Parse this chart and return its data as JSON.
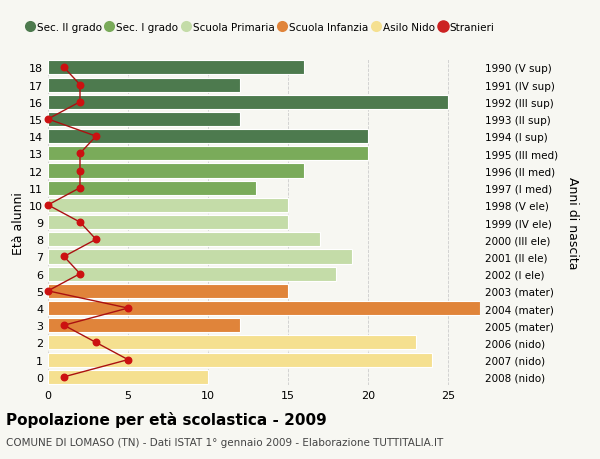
{
  "ages": [
    18,
    17,
    16,
    15,
    14,
    13,
    12,
    11,
    10,
    9,
    8,
    7,
    6,
    5,
    4,
    3,
    2,
    1,
    0
  ],
  "right_labels": [
    "1990 (V sup)",
    "1991 (IV sup)",
    "1992 (III sup)",
    "1993 (II sup)",
    "1994 (I sup)",
    "1995 (III med)",
    "1996 (II med)",
    "1997 (I med)",
    "1998 (V ele)",
    "1999 (IV ele)",
    "2000 (III ele)",
    "2001 (II ele)",
    "2002 (I ele)",
    "2003 (mater)",
    "2004 (mater)",
    "2005 (mater)",
    "2006 (nido)",
    "2007 (nido)",
    "2008 (nido)"
  ],
  "bar_values": [
    16,
    12,
    25,
    12,
    20,
    20,
    16,
    13,
    15,
    15,
    17,
    19,
    18,
    15,
    27,
    12,
    23,
    24,
    10
  ],
  "bar_colors": [
    "#4d7a4e",
    "#4d7a4e",
    "#4d7a4e",
    "#4d7a4e",
    "#4d7a4e",
    "#7aab5a",
    "#7aab5a",
    "#7aab5a",
    "#c4dca8",
    "#c4dca8",
    "#c4dca8",
    "#c4dca8",
    "#c4dca8",
    "#e0843a",
    "#e0843a",
    "#e0843a",
    "#f5e090",
    "#f5e090",
    "#f5e090"
  ],
  "stranieri_values": [
    1,
    2,
    2,
    0,
    3,
    2,
    2,
    2,
    0,
    2,
    3,
    1,
    2,
    0,
    5,
    1,
    3,
    5,
    1
  ],
  "title": "Popolazione per età scolastica - 2009",
  "subtitle": "COMUNE DI LOMASO (TN) - Dati ISTAT 1° gennaio 2009 - Elaborazione TUTTITALIA.IT",
  "ylabel_left": "Età alunni",
  "ylabel_right": "Anni di nascita",
  "xlim": [
    0,
    27
  ],
  "xticks": [
    0,
    5,
    10,
    15,
    20,
    25
  ],
  "legend_labels": [
    "Sec. II grado",
    "Sec. I grado",
    "Scuola Primaria",
    "Scuola Infanzia",
    "Asilo Nido",
    "Stranieri"
  ],
  "legend_colors": [
    "#4d7a4e",
    "#7aab5a",
    "#c4dca8",
    "#e0843a",
    "#f5e090",
    "#cc2222"
  ],
  "bg_color": "#f7f7f2",
  "grid_color": "#cccccc",
  "bar_edgecolor": "#ffffff",
  "stranieri_line_color": "#aa1111",
  "stranieri_dot_color": "#cc1111",
  "title_fontsize": 11,
  "subtitle_fontsize": 7.5,
  "tick_fontsize": 8,
  "legend_fontsize": 7.5
}
